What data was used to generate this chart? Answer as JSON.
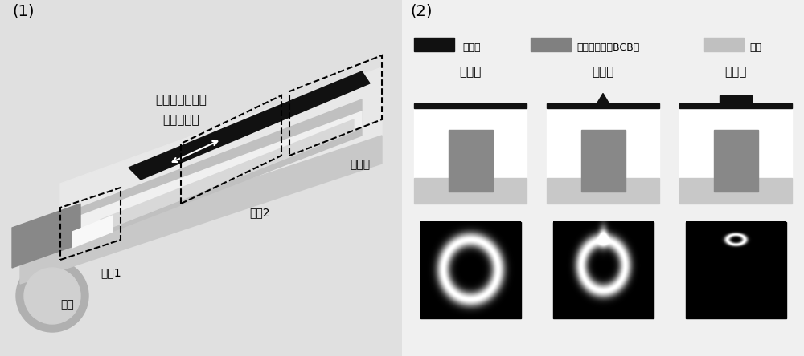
{
  "panel1_label": "(1)",
  "panel2_label": "(2)",
  "bg_color": "#e8e8e8",
  "text_annotation1": "单层鄓酸锂倒锥",
  "text_annotation2": "大对准容差",
  "label_section1": "截面1",
  "label_section2": "截面2",
  "label_section3": "截面３",
  "label_fiber": "光纤",
  "legend_litao3": "鄓酸锂",
  "legend_bcb": "苯并环丁烯（BCB）",
  "legend_silica": "石英",
  "section_labels": [
    "截面１",
    "截面２",
    "截面３"
  ],
  "color_black": "#111111",
  "color_dark_gray": "#808080",
  "color_medium_gray": "#a0a0a0",
  "color_light_gray": "#c8c8c8",
  "color_lighter_gray": "#d8d8d8",
  "color_bg_left": "#d4d4d4",
  "color_white": "#ffffff"
}
